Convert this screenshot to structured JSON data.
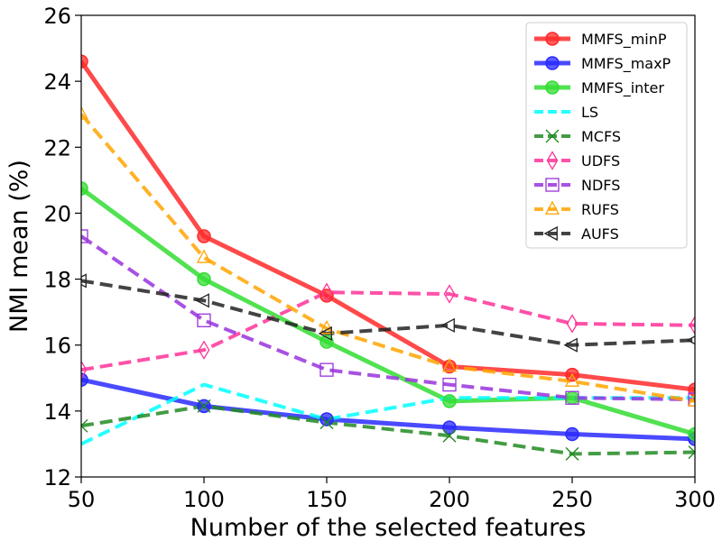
{
  "chart_data": {
    "type": "line",
    "title": "",
    "xlabel": "Number of the selected features",
    "ylabel": "NMI mean (%)",
    "x": [
      50,
      100,
      150,
      200,
      250,
      300
    ],
    "xlim": [
      50,
      300
    ],
    "ylim": [
      12,
      26
    ],
    "xticks": [
      50,
      100,
      150,
      200,
      250,
      300
    ],
    "yticks": [
      12,
      14,
      16,
      18,
      20,
      22,
      24,
      26
    ],
    "grid": false,
    "legend_position": "top-right",
    "series": [
      {
        "name": "MMFS_minP",
        "color": "#ff2a2a",
        "dash": "solid",
        "marker": "circle-filled",
        "width": 5,
        "values": [
          24.6,
          19.3,
          17.5,
          15.35,
          15.1,
          14.65
        ]
      },
      {
        "name": "MMFS_maxP",
        "color": "#2a2aff",
        "dash": "solid",
        "marker": "circle-filled",
        "width": 5,
        "values": [
          14.95,
          14.15,
          13.75,
          13.5,
          13.3,
          13.15
        ]
      },
      {
        "name": "MMFS_inter",
        "color": "#33dd33",
        "dash": "solid",
        "marker": "circle-filled",
        "width": 5,
        "values": [
          20.75,
          18.0,
          16.1,
          14.3,
          14.4,
          13.3
        ]
      },
      {
        "name": "LS",
        "color": "#00ffff",
        "dash": "dashed",
        "marker": "none",
        "width": 4,
        "values": [
          13.0,
          14.8,
          13.75,
          14.4,
          14.4,
          14.4
        ]
      },
      {
        "name": "MCFS",
        "color": "#228b22",
        "dash": "dashed",
        "marker": "x",
        "width": 4,
        "values": [
          13.55,
          14.15,
          13.65,
          13.25,
          12.7,
          12.75
        ]
      },
      {
        "name": "UDFS",
        "color": "#ff3399",
        "dash": "dashed",
        "marker": "diamond-open",
        "width": 4,
        "values": [
          15.25,
          15.85,
          17.6,
          17.55,
          16.65,
          16.6
        ]
      },
      {
        "name": "NDFS",
        "color": "#9933dd",
        "dash": "dashed",
        "marker": "square-open",
        "width": 4,
        "values": [
          19.3,
          16.75,
          15.25,
          14.8,
          14.4,
          14.35
        ]
      },
      {
        "name": "RUFS",
        "color": "#ffa500",
        "dash": "dashed",
        "marker": "triangle-open",
        "width": 4,
        "values": [
          23.0,
          18.65,
          16.5,
          15.35,
          14.9,
          14.3
        ]
      },
      {
        "name": "AUFS",
        "color": "#222222",
        "dash": "dashed",
        "marker": "triangle-left-open",
        "width": 4,
        "values": [
          17.95,
          17.35,
          16.35,
          16.6,
          16.0,
          16.15
        ]
      }
    ]
  }
}
